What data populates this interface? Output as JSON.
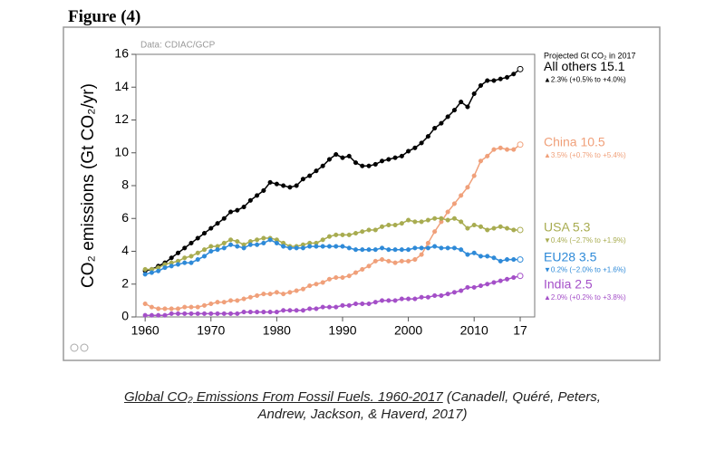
{
  "figure_label": "Figure (4)",
  "chart_data": {
    "type": "line",
    "source": "Data: CDIAC/GCP",
    "y_label": "CO₂ emissions (Gt CO₂/yr)",
    "legend_title": "Projected Gt CO₂ in 2017",
    "x": [
      1960,
      1961,
      1962,
      1963,
      1964,
      1965,
      1966,
      1967,
      1968,
      1969,
      1970,
      1971,
      1972,
      1973,
      1974,
      1975,
      1976,
      1977,
      1978,
      1979,
      1980,
      1981,
      1982,
      1983,
      1984,
      1985,
      1986,
      1987,
      1988,
      1989,
      1990,
      1991,
      1992,
      1993,
      1994,
      1995,
      1996,
      1997,
      1998,
      1999,
      2000,
      2001,
      2002,
      2003,
      2004,
      2005,
      2006,
      2007,
      2008,
      2009,
      2010,
      2011,
      2012,
      2013,
      2014,
      2015,
      2016,
      2017
    ],
    "xlim": [
      1958.6,
      2019.2
    ],
    "xticks": [
      1960,
      1970,
      1980,
      1990,
      2000,
      2010,
      {
        "value": 2017,
        "label": "17"
      }
    ],
    "ylim": [
      0,
      16
    ],
    "yticks": [
      0,
      2,
      4,
      6,
      8,
      10,
      12,
      14,
      16
    ],
    "grid": false,
    "series": [
      {
        "name": "All others 15.1",
        "change": "▲2.3% (+0.5% to +4.0%)",
        "color": "#000000",
        "values": [
          2.8,
          2.9,
          3.1,
          3.3,
          3.6,
          3.9,
          4.2,
          4.5,
          4.8,
          5.1,
          5.4,
          5.7,
          6.0,
          6.4,
          6.5,
          6.7,
          7.1,
          7.4,
          7.7,
          8.2,
          8.1,
          8.0,
          7.9,
          8.0,
          8.4,
          8.6,
          8.9,
          9.2,
          9.6,
          9.9,
          9.7,
          9.8,
          9.4,
          9.2,
          9.2,
          9.3,
          9.5,
          9.6,
          9.7,
          9.8,
          10.1,
          10.3,
          10.6,
          11.0,
          11.5,
          11.8,
          12.2,
          12.6,
          13.1,
          12.8,
          13.6,
          14.1,
          14.4,
          14.4,
          14.5,
          14.6,
          14.8,
          15.1
        ]
      },
      {
        "name": "China 10.5",
        "change": "▲3.5% (+0.7% to +5.4%)",
        "color": "#f0a07a",
        "values": [
          0.8,
          0.6,
          0.5,
          0.5,
          0.5,
          0.5,
          0.6,
          0.6,
          0.6,
          0.7,
          0.8,
          0.9,
          0.9,
          1.0,
          1.0,
          1.1,
          1.2,
          1.3,
          1.4,
          1.4,
          1.5,
          1.4,
          1.5,
          1.6,
          1.7,
          1.9,
          2.0,
          2.1,
          2.3,
          2.4,
          2.4,
          2.5,
          2.7,
          2.9,
          3.1,
          3.4,
          3.5,
          3.4,
          3.3,
          3.4,
          3.4,
          3.5,
          3.8,
          4.5,
          5.2,
          5.8,
          6.4,
          6.9,
          7.4,
          7.9,
          8.6,
          9.5,
          9.8,
          10.2,
          10.3,
          10.2,
          10.2,
          10.5
        ]
      },
      {
        "name": "USA 5.3",
        "change": "▼0.4% (−2.7% to +1.9%)",
        "color": "#a8ac50",
        "values": [
          2.9,
          2.9,
          3.0,
          3.2,
          3.3,
          3.4,
          3.6,
          3.7,
          3.9,
          4.1,
          4.3,
          4.3,
          4.5,
          4.7,
          4.6,
          4.4,
          4.6,
          4.7,
          4.8,
          4.8,
          4.7,
          4.5,
          4.3,
          4.3,
          4.4,
          4.5,
          4.5,
          4.7,
          4.9,
          5.0,
          5.0,
          5.0,
          5.1,
          5.2,
          5.3,
          5.3,
          5.5,
          5.6,
          5.6,
          5.7,
          5.9,
          5.8,
          5.8,
          5.9,
          6.0,
          6.0,
          5.9,
          6.0,
          5.8,
          5.4,
          5.6,
          5.5,
          5.3,
          5.4,
          5.5,
          5.4,
          5.3,
          5.3
        ]
      },
      {
        "name": "EU28 3.5",
        "change": "▼0.2% (−2.0% to +1.6%)",
        "color": "#2e8ad8",
        "values": [
          2.6,
          2.7,
          2.8,
          3.0,
          3.1,
          3.2,
          3.3,
          3.3,
          3.5,
          3.7,
          4.0,
          4.1,
          4.2,
          4.4,
          4.3,
          4.2,
          4.4,
          4.4,
          4.5,
          4.7,
          4.5,
          4.3,
          4.2,
          4.2,
          4.2,
          4.3,
          4.3,
          4.3,
          4.3,
          4.3,
          4.3,
          4.2,
          4.1,
          4.1,
          4.1,
          4.1,
          4.2,
          4.1,
          4.1,
          4.1,
          4.1,
          4.2,
          4.2,
          4.2,
          4.3,
          4.2,
          4.2,
          4.2,
          4.1,
          3.8,
          3.9,
          3.7,
          3.7,
          3.6,
          3.4,
          3.5,
          3.5,
          3.5
        ]
      },
      {
        "name": "India 2.5",
        "change": "▲2.0% (+0.2% to +3.8%)",
        "color": "#a44fc8",
        "values": [
          0.1,
          0.1,
          0.1,
          0.1,
          0.2,
          0.2,
          0.2,
          0.2,
          0.2,
          0.2,
          0.2,
          0.2,
          0.2,
          0.2,
          0.2,
          0.3,
          0.3,
          0.3,
          0.3,
          0.3,
          0.3,
          0.4,
          0.4,
          0.4,
          0.4,
          0.5,
          0.5,
          0.6,
          0.6,
          0.6,
          0.7,
          0.7,
          0.8,
          0.8,
          0.8,
          0.9,
          1.0,
          1.0,
          1.0,
          1.1,
          1.1,
          1.1,
          1.2,
          1.2,
          1.3,
          1.3,
          1.4,
          1.5,
          1.6,
          1.8,
          1.8,
          1.9,
          2.0,
          2.1,
          2.2,
          2.3,
          2.4,
          2.5
        ]
      }
    ]
  },
  "caption": {
    "underlined": "Global CO₂ Emissions From Fossil Fuels. 1960-2017",
    "rest": "(Canadell, Quéré, Peters,",
    "line2": "Andrew, Jackson, & Haverd, 2017)"
  }
}
